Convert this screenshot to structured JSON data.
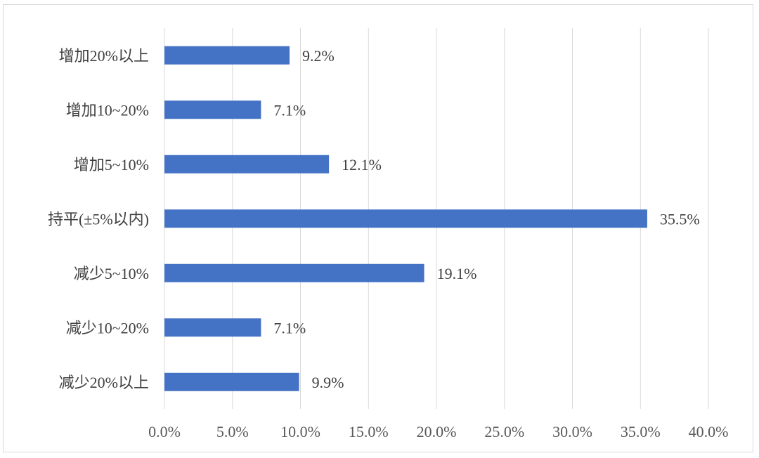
{
  "chart_data": {
    "type": "bar",
    "orientation": "horizontal",
    "categories": [
      "增加20%以上",
      "增加10~20%",
      "增加5~10%",
      "持平(±5%以内)",
      "减少5~10%",
      "减少10~20%",
      "减少20%以上"
    ],
    "values": [
      9.2,
      7.1,
      12.1,
      35.5,
      19.1,
      7.1,
      9.9
    ],
    "data_labels": [
      "9.2%",
      "7.1%",
      "12.1%",
      "35.5%",
      "19.1%",
      "7.1%",
      "9.9%"
    ],
    "x_ticks": [
      "0.0%",
      "5.0%",
      "10.0%",
      "15.0%",
      "20.0%",
      "25.0%",
      "30.0%",
      "35.0%",
      "40.0%"
    ],
    "xlim": [
      0,
      40
    ],
    "title": "",
    "xlabel": "",
    "ylabel": "",
    "grid": "vertical",
    "legend": "none",
    "bar_color": "#4472C4"
  }
}
